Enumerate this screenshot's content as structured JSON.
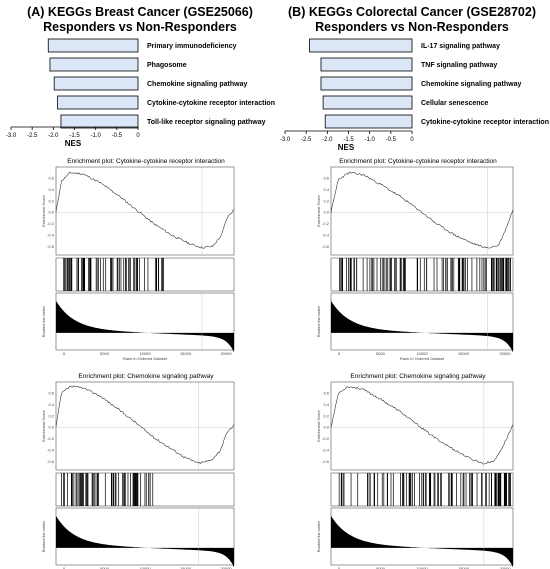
{
  "panels": [
    {
      "title_line1": "(A) KEGGs Breast Cancer (GSE25066)",
      "title_line2": "Responders vs Non-Responders",
      "bar_chart": {
        "type": "bar",
        "orientation": "horizontal",
        "categories": [
          "Primary immunodeficiency",
          "Phagosome",
          "Chemokine signaling pathway",
          "Cytokine-cytokine receptor interaction",
          "Toll-like receptor signaling pathway"
        ],
        "values": [
          -2.12,
          -2.08,
          -1.98,
          -1.9,
          -1.82
        ],
        "xlabel": "NES",
        "xlim": [
          -3.0,
          0
        ],
        "ticks": [
          "-3.0",
          "-2.5",
          "-2.0",
          "-1.5",
          "-1.0",
          "-0.5",
          "0"
        ],
        "bar_color": "#dbe7f7"
      },
      "enrichment_plots": [
        {
          "title": "Enrichment plot: Cytokine-cytokine receptor interaction",
          "ylabel_es": "Enrichment Score",
          "ylabel_rank": "Ranked list metric",
          "xlabel": "Rank in Ordered Dataset",
          "x_ticks": [
            "0",
            "5000",
            "10000",
            "15000",
            "20000"
          ],
          "es_curve": [
            [
              0,
              0.0
            ],
            [
              0.03,
              0.55
            ],
            [
              0.08,
              0.7
            ],
            [
              0.15,
              0.68
            ],
            [
              0.25,
              0.52
            ],
            [
              0.35,
              0.3
            ],
            [
              0.45,
              0.05
            ],
            [
              0.55,
              -0.2
            ],
            [
              0.65,
              -0.4
            ],
            [
              0.75,
              -0.55
            ],
            [
              0.82,
              -0.62
            ],
            [
              0.88,
              -0.6
            ],
            [
              0.93,
              -0.4
            ],
            [
              0.96,
              -0.1
            ],
            [
              1.0,
              0.05
            ]
          ],
          "hit_range": [
            0.03,
            0.62
          ],
          "hit_density": "front"
        },
        {
          "title": "Enrichment plot: Chemokine signaling pathway",
          "ylabel_es": "Enrichment Score",
          "ylabel_rank": "Ranked list metric",
          "xlabel": "Rank in Ordered Dataset",
          "x_ticks": [
            "0",
            "5000",
            "10000",
            "15000",
            "20000"
          ],
          "es_curve": [
            [
              0,
              0.0
            ],
            [
              0.03,
              0.6
            ],
            [
              0.08,
              0.72
            ],
            [
              0.15,
              0.7
            ],
            [
              0.25,
              0.55
            ],
            [
              0.35,
              0.32
            ],
            [
              0.45,
              0.08
            ],
            [
              0.55,
              -0.18
            ],
            [
              0.65,
              -0.38
            ],
            [
              0.72,
              -0.52
            ],
            [
              0.8,
              -0.63
            ],
            [
              0.87,
              -0.58
            ],
            [
              0.92,
              -0.42
            ],
            [
              0.96,
              -0.1
            ],
            [
              1.0,
              0.05
            ]
          ],
          "hit_range": [
            0.03,
            0.58
          ],
          "hit_density": "front"
        }
      ]
    },
    {
      "title_line1": "(B) KEGGs Colorectal Cancer (GSE28702)",
      "title_line2": "Responders vs Non-Responders",
      "bar_chart": {
        "type": "bar",
        "orientation": "horizontal",
        "categories": [
          "IL-17 signaling pathway",
          "TNF signaling pathway",
          "Chemokine signaling pathway",
          "Cellular senescence",
          "Cytokine-cytokine receptor interaction"
        ],
        "values": [
          -2.42,
          -2.15,
          -2.15,
          -2.1,
          -2.05
        ],
        "xlabel": "NES",
        "xlim": [
          -3.0,
          0
        ],
        "ticks": [
          "-3.0",
          "-2.5",
          "-2.0",
          "-1.5",
          "-1.0",
          "-0.5",
          "0"
        ],
        "bar_color": "#dbe7f7"
      },
      "enrichment_plots": [
        {
          "title": "Enrichment plot: Cytokine-cytokine receptor interaction",
          "ylabel_es": "Enrichment Score",
          "ylabel_rank": "Ranked list metric",
          "xlabel": "Rank in Ordered Dataset",
          "x_ticks": [
            "0",
            "5000",
            "10000",
            "15000",
            "20000"
          ],
          "es_curve": [
            [
              0,
              0.0
            ],
            [
              0.04,
              0.58
            ],
            [
              0.1,
              0.7
            ],
            [
              0.18,
              0.66
            ],
            [
              0.28,
              0.48
            ],
            [
              0.38,
              0.28
            ],
            [
              0.48,
              0.05
            ],
            [
              0.58,
              -0.2
            ],
            [
              0.68,
              -0.4
            ],
            [
              0.78,
              -0.55
            ],
            [
              0.86,
              -0.63
            ],
            [
              0.92,
              -0.58
            ],
            [
              0.96,
              -0.3
            ],
            [
              1.0,
              0.05
            ]
          ],
          "hit_range": [
            0.04,
            0.98
          ],
          "hit_density": "spread"
        },
        {
          "title": "Enrichment plot: Chemokine signaling pathway",
          "ylabel_es": "Enrichment Score",
          "ylabel_rank": "Ranked list metric",
          "xlabel": "Rank in Ordered Dataset",
          "x_ticks": [
            "0",
            "5000",
            "10000",
            "15000",
            "20000"
          ],
          "es_curve": [
            [
              0,
              0.0
            ],
            [
              0.04,
              0.6
            ],
            [
              0.09,
              0.72
            ],
            [
              0.17,
              0.68
            ],
            [
              0.27,
              0.5
            ],
            [
              0.37,
              0.3
            ],
            [
              0.47,
              0.06
            ],
            [
              0.57,
              -0.18
            ],
            [
              0.67,
              -0.38
            ],
            [
              0.76,
              -0.54
            ],
            [
              0.84,
              -0.64
            ],
            [
              0.9,
              -0.58
            ],
            [
              0.95,
              -0.3
            ],
            [
              1.0,
              0.05
            ]
          ],
          "hit_range": [
            0.04,
            0.98
          ],
          "hit_density": "spread"
        }
      ]
    }
  ]
}
